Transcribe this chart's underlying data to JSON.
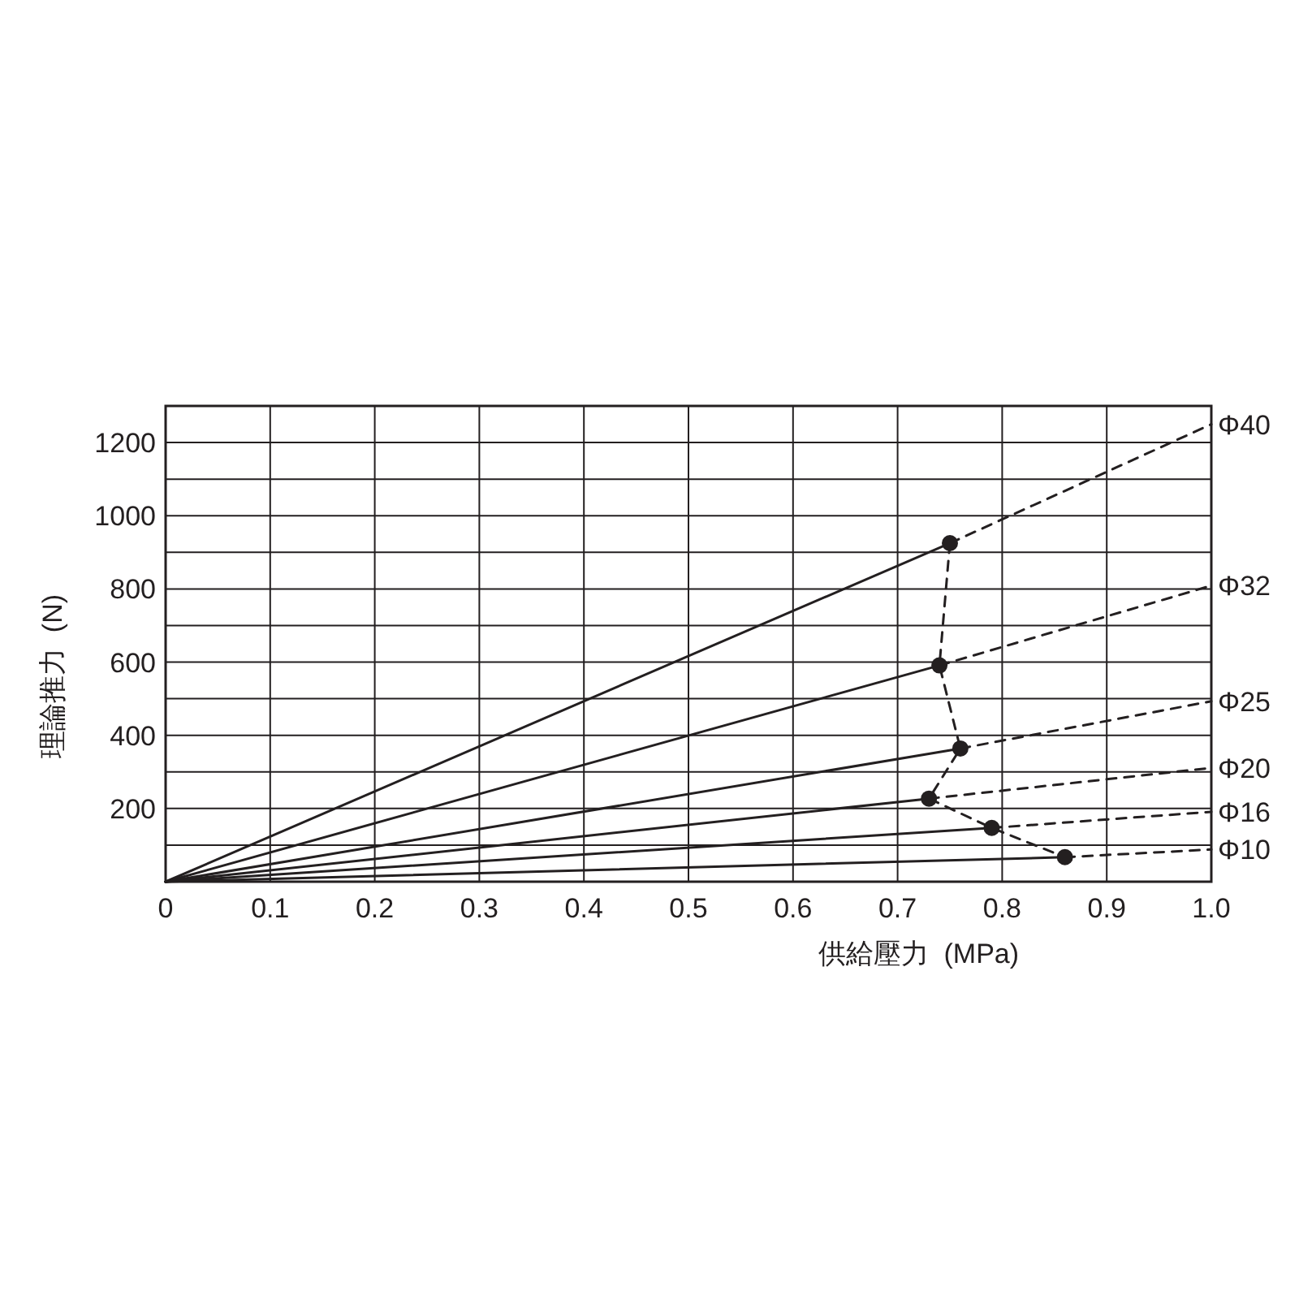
{
  "chart_data": {
    "type": "line",
    "xlabel": "供給壓力  (MPa)",
    "ylabel": "理論推力  (N)",
    "xlim": [
      0,
      1.0
    ],
    "ylim": [
      0,
      1300
    ],
    "xticks": [
      0,
      0.1,
      0.2,
      0.3,
      0.4,
      0.5,
      0.6,
      0.7,
      0.8,
      0.9,
      {
        "value": 1.0,
        "label": "1.0"
      }
    ],
    "yticks": [
      {
        "value": 100,
        "label": null
      },
      200,
      {
        "value": 300,
        "label": null
      },
      400,
      {
        "value": 500,
        "label": null
      },
      600,
      {
        "value": 700,
        "label": null
      },
      800,
      {
        "value": 900,
        "label": null
      },
      1000,
      {
        "value": 1100,
        "label": null
      },
      1200,
      {
        "value": 1300,
        "label": null
      }
    ],
    "grid": true,
    "series": [
      {
        "color": "#231f20",
        "line_style": "solid",
        "x": [
          0,
          0.75
        ],
        "values": [
          0,
          925
        ]
      },
      {
        "color": "#231f20",
        "line_style": "solid",
        "x": [
          0,
          0.74
        ],
        "values": [
          0,
          591
        ]
      },
      {
        "color": "#231f20",
        "line_style": "solid",
        "x": [
          0,
          0.76
        ],
        "values": [
          0,
          364
        ]
      },
      {
        "color": "#231f20",
        "line_style": "solid",
        "x": [
          0,
          0.73
        ],
        "values": [
          0,
          227
        ]
      },
      {
        "color": "#231f20",
        "line_style": "solid",
        "x": [
          0,
          0.79
        ],
        "values": [
          0,
          147
        ]
      },
      {
        "color": "#231f20",
        "line_style": "solid",
        "x": [
          0,
          0.86
        ],
        "values": [
          0,
          67
        ]
      },
      {
        "name": "Φ40",
        "color": "#231f20",
        "line_style": "dashed",
        "x": [
          0.75,
          1.0
        ],
        "values": [
          925,
          1250
        ]
      },
      {
        "name": "Φ32",
        "color": "#231f20",
        "line_style": "dashed",
        "x": [
          0.74,
          1.0
        ],
        "values": [
          591,
          809
        ]
      },
      {
        "name": "Φ25",
        "color": "#231f20",
        "line_style": "dashed",
        "x": [
          0.76,
          1.0
        ],
        "values": [
          364,
          493
        ]
      },
      {
        "name": "Φ20",
        "color": "#231f20",
        "line_style": "dashed",
        "x": [
          0.73,
          1.0
        ],
        "values": [
          227,
          311
        ]
      },
      {
        "name": "Φ16",
        "color": "#231f20",
        "line_style": "dashed",
        "x": [
          0.79,
          1.0
        ],
        "values": [
          147,
          191
        ]
      },
      {
        "name": "Φ10",
        "color": "#231f20",
        "line_style": "dashed",
        "x": [
          0.86,
          1.0
        ],
        "values": [
          67,
          88
        ]
      },
      {
        "color": "#231f20",
        "line_style": "dashed",
        "x": [
          0.75,
          0.74,
          0.76,
          0.73,
          0.79,
          0.86
        ],
        "values": [
          925,
          591,
          364,
          227,
          147,
          67
        ]
      },
      {
        "type": "scatter",
        "color": "#231f20",
        "marker": "circle",
        "x": [
          0.75,
          0.74,
          0.76,
          0.73,
          0.79,
          0.86
        ],
        "values": [
          925,
          591,
          364,
          227,
          147,
          67
        ]
      }
    ]
  }
}
